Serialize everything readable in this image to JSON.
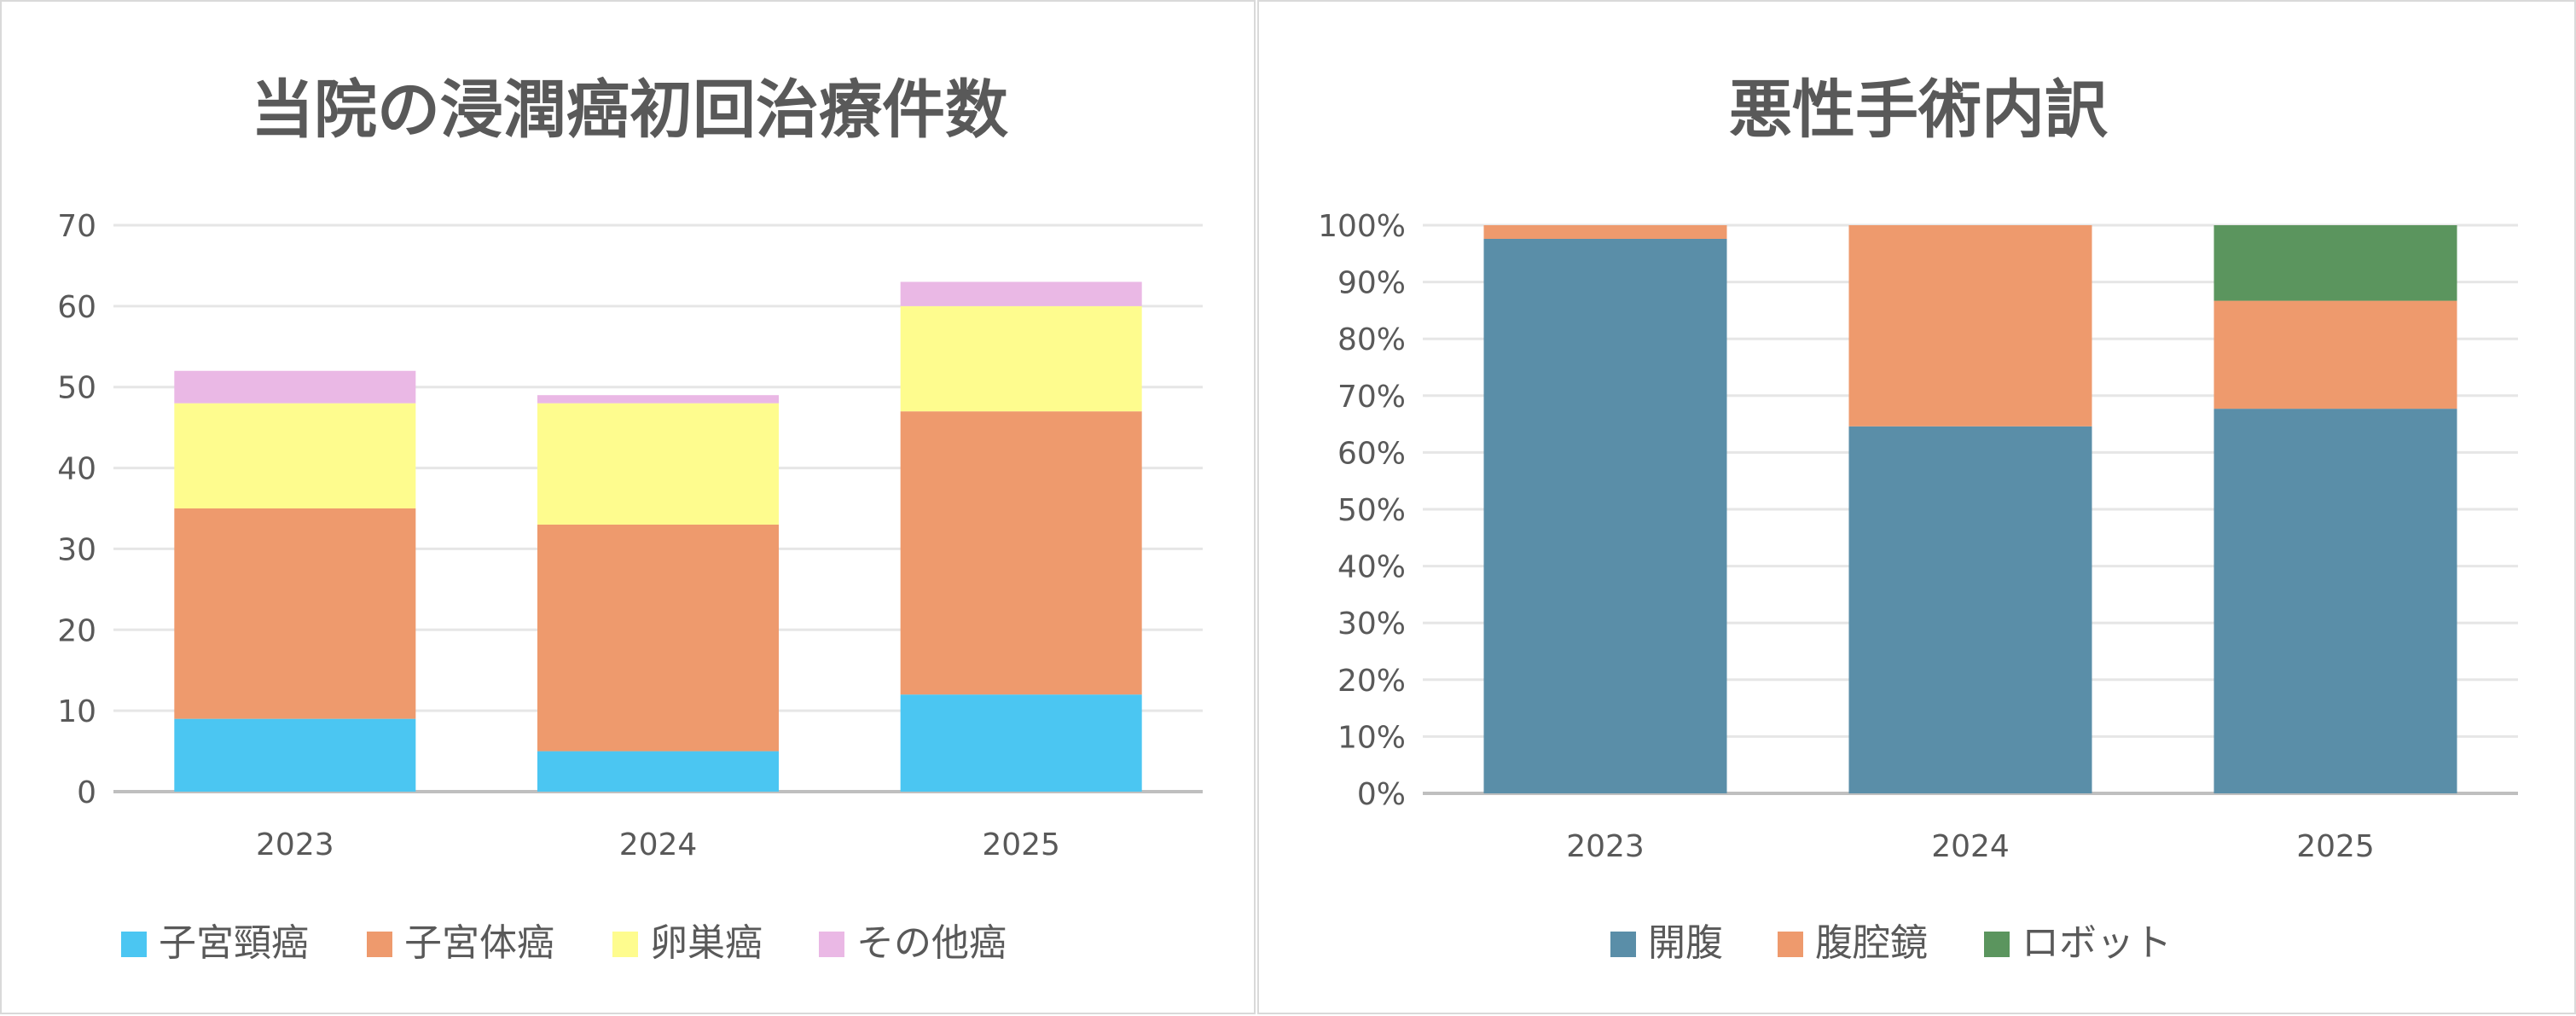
{
  "chart_data": [
    {
      "type": "bar",
      "stacked": true,
      "title": "当院の浸潤癌初回治療件数",
      "categories": [
        "2023",
        "2024",
        "2025"
      ],
      "ylim": [
        0,
        70
      ],
      "yticks": [
        0,
        10,
        20,
        30,
        40,
        50,
        60,
        70
      ],
      "grid": true,
      "legend": "bottom",
      "series": [
        {
          "name": "子宮頸癌",
          "color": "#4BC6F2",
          "values": [
            9,
            5,
            12
          ]
        },
        {
          "name": "子宮体癌",
          "color": "#EE9A6D",
          "values": [
            26,
            28,
            35
          ]
        },
        {
          "name": "卵巣癌",
          "color": "#FEFC8E",
          "values": [
            13,
            15,
            13
          ]
        },
        {
          "name": "その他癌",
          "color": "#EAB8E5",
          "values": [
            4,
            1,
            3
          ]
        }
      ]
    },
    {
      "type": "bar",
      "stacked": true,
      "percent": true,
      "title": "悪性手術内訳",
      "categories": [
        "2023",
        "2024",
        "2025"
      ],
      "ylim": [
        0,
        100
      ],
      "yticks": [
        "0%",
        "10%",
        "20%",
        "30%",
        "40%",
        "50%",
        "60%",
        "70%",
        "80%",
        "90%",
        "100%"
      ],
      "grid": true,
      "legend": "bottom",
      "series": [
        {
          "name": "開腹",
          "color": "#5A8EA8",
          "values": [
            97.6,
            64.6,
            67.7
          ]
        },
        {
          "name": "腹腔鏡",
          "color": "#EE9A6D",
          "values": [
            2.4,
            35.4,
            19.0
          ]
        },
        {
          "name": "ロボット",
          "color": "#5B955E",
          "values": [
            0,
            0,
            13.3
          ]
        }
      ]
    }
  ]
}
